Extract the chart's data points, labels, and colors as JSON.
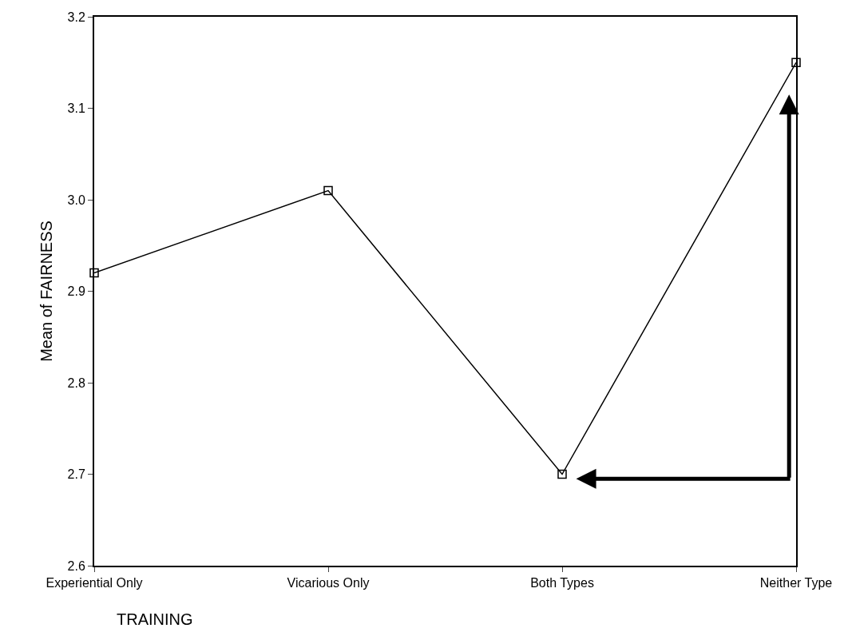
{
  "chart_data": {
    "type": "line",
    "xlabel": "TRAINING",
    "ylabel": "Mean of FAIRNESS",
    "categories": [
      "Experiential Only",
      "Vicarious Only",
      "Both Types",
      "Neither Type"
    ],
    "series": [
      {
        "color": "#000000",
        "values": [
          2.92,
          3.01,
          2.7,
          3.15
        ]
      }
    ],
    "ylim": [
      2.6,
      3.2
    ],
    "yticks": [
      2.6,
      2.7,
      2.8,
      2.9,
      {
        "value": 3.0,
        "label": "3.0"
      },
      3.1,
      3.2
    ],
    "marker": "square",
    "line_style": "solid"
  }
}
